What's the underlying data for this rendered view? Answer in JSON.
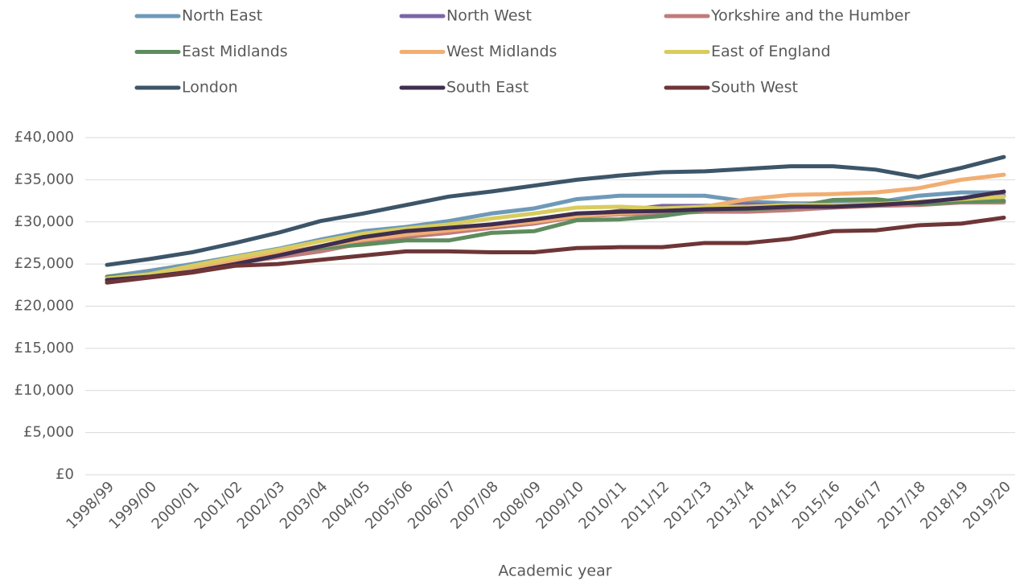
{
  "chart_data": {
    "type": "line",
    "x_label": "Academic year",
    "legend": "top",
    "grid": true,
    "categories": [
      "1998/99",
      "1999/00",
      "2000/01",
      "2001/02",
      "2002/03",
      "2003/04",
      "2004/05",
      "2005/06",
      "2006/07",
      "2007/08",
      "2008/09",
      "2009/10",
      "2010/11",
      "2011/12",
      "2012/13",
      "2013/14",
      "2014/15",
      "2015/16",
      "2016/17",
      "2017/18",
      "2018/19",
      "2019/20"
    ],
    "ylim": [
      0,
      40000
    ],
    "yticks": [
      {
        "value": 0,
        "label": "£0"
      },
      {
        "value": 5000,
        "label": "£5,000"
      },
      {
        "value": 10000,
        "label": "£10,000"
      },
      {
        "value": 15000,
        "label": "£15,000"
      },
      {
        "value": 20000,
        "label": "£20,000"
      },
      {
        "value": 25000,
        "label": "£25,000"
      },
      {
        "value": 30000,
        "label": "£30,000"
      },
      {
        "value": 35000,
        "label": "£35,000"
      },
      {
        "value": 40000,
        "label": "£40,000"
      }
    ],
    "series": [
      {
        "name": "North East",
        "color": "#6f99b8",
        "values": [
          23500,
          24200,
          25000,
          25900,
          26800,
          27900,
          28900,
          29400,
          30100,
          31000,
          31600,
          32700,
          33100,
          33100,
          33100,
          32400,
          32200,
          32200,
          32300,
          33100,
          33500,
          33500
        ]
      },
      {
        "name": "North West",
        "color": "#7b65a6",
        "values": [
          23200,
          23600,
          24300,
          25300,
          26200,
          26900,
          27700,
          28500,
          29100,
          29600,
          30100,
          30800,
          31300,
          31900,
          31900,
          32100,
          31900,
          32000,
          32100,
          32300,
          32600,
          33100
        ]
      },
      {
        "name": "Yorkshire and the Humber",
        "color": "#c07c7c",
        "values": [
          22800,
          23500,
          24200,
          25100,
          25800,
          26500,
          27500,
          28200,
          28700,
          29300,
          29800,
          30600,
          30900,
          31000,
          31200,
          31200,
          31400,
          31700,
          31900,
          32000,
          32300,
          32300
        ]
      },
      {
        "name": "East Midlands",
        "color": "#5e8c5e",
        "values": [
          23500,
          23700,
          24400,
          25500,
          26300,
          26900,
          27300,
          27800,
          27800,
          28700,
          28900,
          30200,
          30300,
          30700,
          31400,
          31500,
          31700,
          32600,
          32700,
          32100,
          32400,
          32500
        ]
      },
      {
        "name": "West Midlands",
        "color": "#f2ae72",
        "values": [
          23000,
          23600,
          24500,
          25400,
          26300,
          27100,
          27900,
          28500,
          29000,
          29500,
          30000,
          30700,
          31000,
          31300,
          31800,
          32700,
          33200,
          33300,
          33500,
          34000,
          35000,
          35600
        ]
      },
      {
        "name": "East of England",
        "color": "#d8cc5e",
        "values": [
          23300,
          23800,
          24800,
          25800,
          26700,
          27700,
          28600,
          29200,
          29700,
          30400,
          31000,
          31700,
          31800,
          31600,
          31800,
          31800,
          32000,
          32000,
          32100,
          32400,
          32700,
          33000
        ]
      },
      {
        "name": "London",
        "color": "#3d5568",
        "values": [
          24900,
          25600,
          26400,
          27500,
          28700,
          30100,
          31000,
          32000,
          33000,
          33600,
          34300,
          35000,
          35500,
          35900,
          36000,
          36300,
          36600,
          36600,
          36200,
          35300,
          36400,
          37700
        ]
      },
      {
        "name": "South East",
        "color": "#3f2e4f",
        "values": [
          23100,
          23500,
          24100,
          25000,
          26000,
          27100,
          28200,
          28900,
          29300,
          29700,
          30300,
          31000,
          31200,
          31300,
          31500,
          31600,
          31800,
          31800,
          32000,
          32300,
          32800,
          33600
        ]
      },
      {
        "name": "South West",
        "color": "#6e3537",
        "values": [
          22800,
          23400,
          24000,
          24800,
          25000,
          25500,
          26000,
          26500,
          26500,
          26400,
          26400,
          26900,
          27000,
          27000,
          27500,
          27500,
          28000,
          28900,
          29000,
          29600,
          29800,
          30500
        ]
      }
    ]
  }
}
